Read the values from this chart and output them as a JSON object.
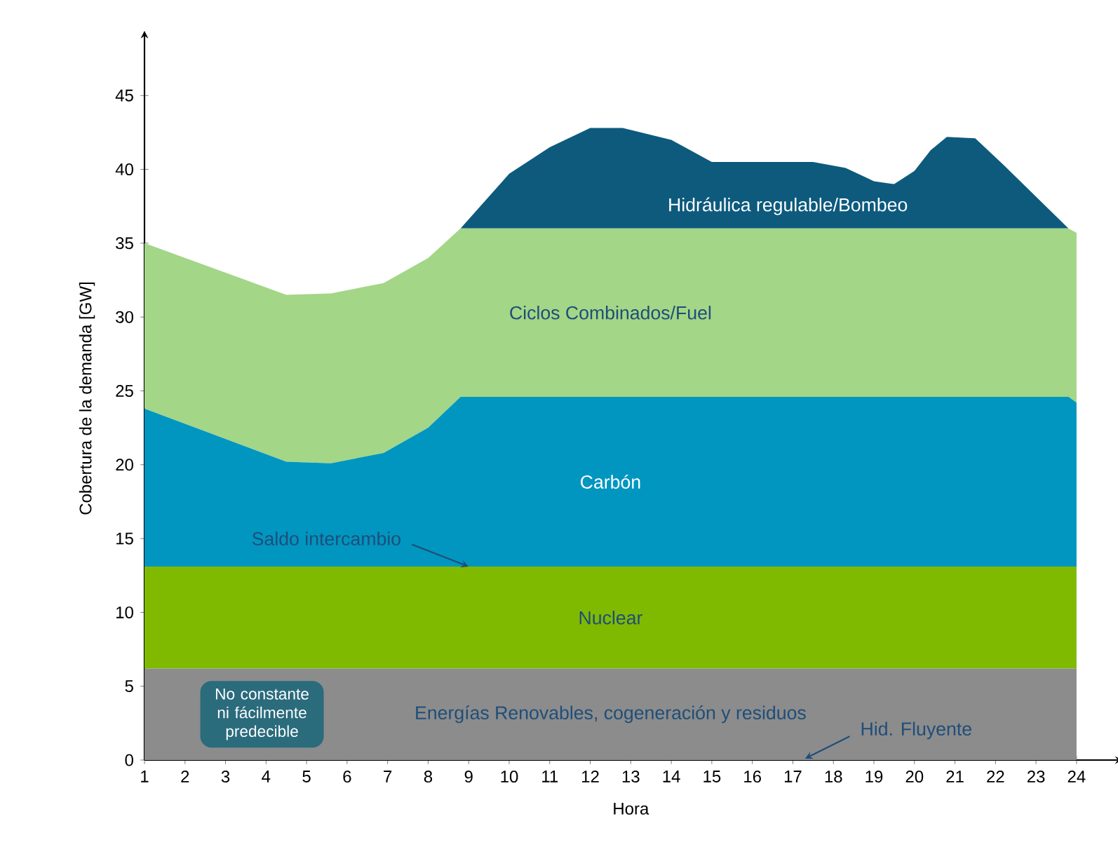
{
  "chart_data": {
    "type": "area",
    "stacked": true,
    "xlabel": "Hora",
    "ylabel": "Cobertura de la demanda [GW]",
    "x": [
      1,
      4.5,
      5.6,
      6.9,
      8,
      8.8,
      10,
      11,
      12,
      12.8,
      14,
      15,
      16,
      17.5,
      18.3,
      19,
      19.5,
      20,
      20.4,
      20.8,
      21.5,
      22.2,
      23.8,
      24
    ],
    "xlim": [
      1,
      25
    ],
    "xticks": [
      1,
      2,
      3,
      4,
      5,
      6,
      7,
      8,
      9,
      10,
      11,
      12,
      13,
      14,
      15,
      16,
      17,
      18,
      19,
      20,
      21,
      22,
      23,
      24
    ],
    "ylim": [
      0,
      49
    ],
    "yticks": [
      0,
      5,
      10,
      15,
      20,
      25,
      30,
      35,
      40,
      45
    ],
    "series": [
      {
        "name": "Energías Renovables, cogeneración y residuos",
        "color": "#8c8c8c",
        "values": [
          6.2,
          6.2,
          6.2,
          6.2,
          6.2,
          6.2,
          6.2,
          6.2,
          6.2,
          6.2,
          6.2,
          6.2,
          6.2,
          6.2,
          6.2,
          6.2,
          6.2,
          6.2,
          6.2,
          6.2,
          6.2,
          6.2,
          6.2,
          6.2
        ]
      },
      {
        "name": "Nuclear",
        "color": "#7fba00",
        "values": [
          6.9,
          6.9,
          6.9,
          6.9,
          6.9,
          6.9,
          6.9,
          6.9,
          6.9,
          6.9,
          6.9,
          6.9,
          6.9,
          6.9,
          6.9,
          6.9,
          6.9,
          6.9,
          6.9,
          6.9,
          6.9,
          6.9,
          6.9,
          6.9
        ]
      },
      {
        "name": "Carbón",
        "color": "#0096c0",
        "values": [
          10.7,
          7.1,
          7.0,
          7.7,
          9.4,
          11.5,
          11.5,
          11.5,
          11.5,
          11.5,
          11.5,
          11.5,
          11.5,
          11.5,
          11.5,
          11.5,
          11.5,
          11.5,
          11.5,
          11.5,
          11.5,
          11.5,
          11.5,
          11.1
        ]
      },
      {
        "name": "Ciclos Combinados/Fuel",
        "color": "#a3d686",
        "values": [
          11.2,
          11.3,
          11.5,
          11.5,
          11.5,
          11.4,
          11.4,
          11.4,
          11.4,
          11.4,
          11.4,
          11.4,
          11.4,
          11.4,
          11.4,
          11.4,
          11.4,
          11.4,
          11.4,
          11.4,
          11.4,
          11.4,
          11.4,
          11.5
        ]
      },
      {
        "name": "Hidráulica regulable/Bombeo",
        "color": "#0d5a7d",
        "values": [
          0,
          0,
          0,
          0,
          0,
          0,
          3.7,
          5.5,
          6.8,
          6.8,
          6.0,
          4.5,
          4.5,
          4.5,
          4.1,
          3.2,
          3.0,
          3.9,
          5.3,
          6.2,
          6.1,
          4.3,
          0,
          0
        ]
      }
    ],
    "annotations": [
      {
        "text": "Saldo intercambio",
        "x": 9,
        "y": 13.1
      },
      {
        "text": "Hid. Fluyente",
        "x": 17.3,
        "y": 0
      },
      "No constante ni fácilmente predecible"
    ]
  }
}
